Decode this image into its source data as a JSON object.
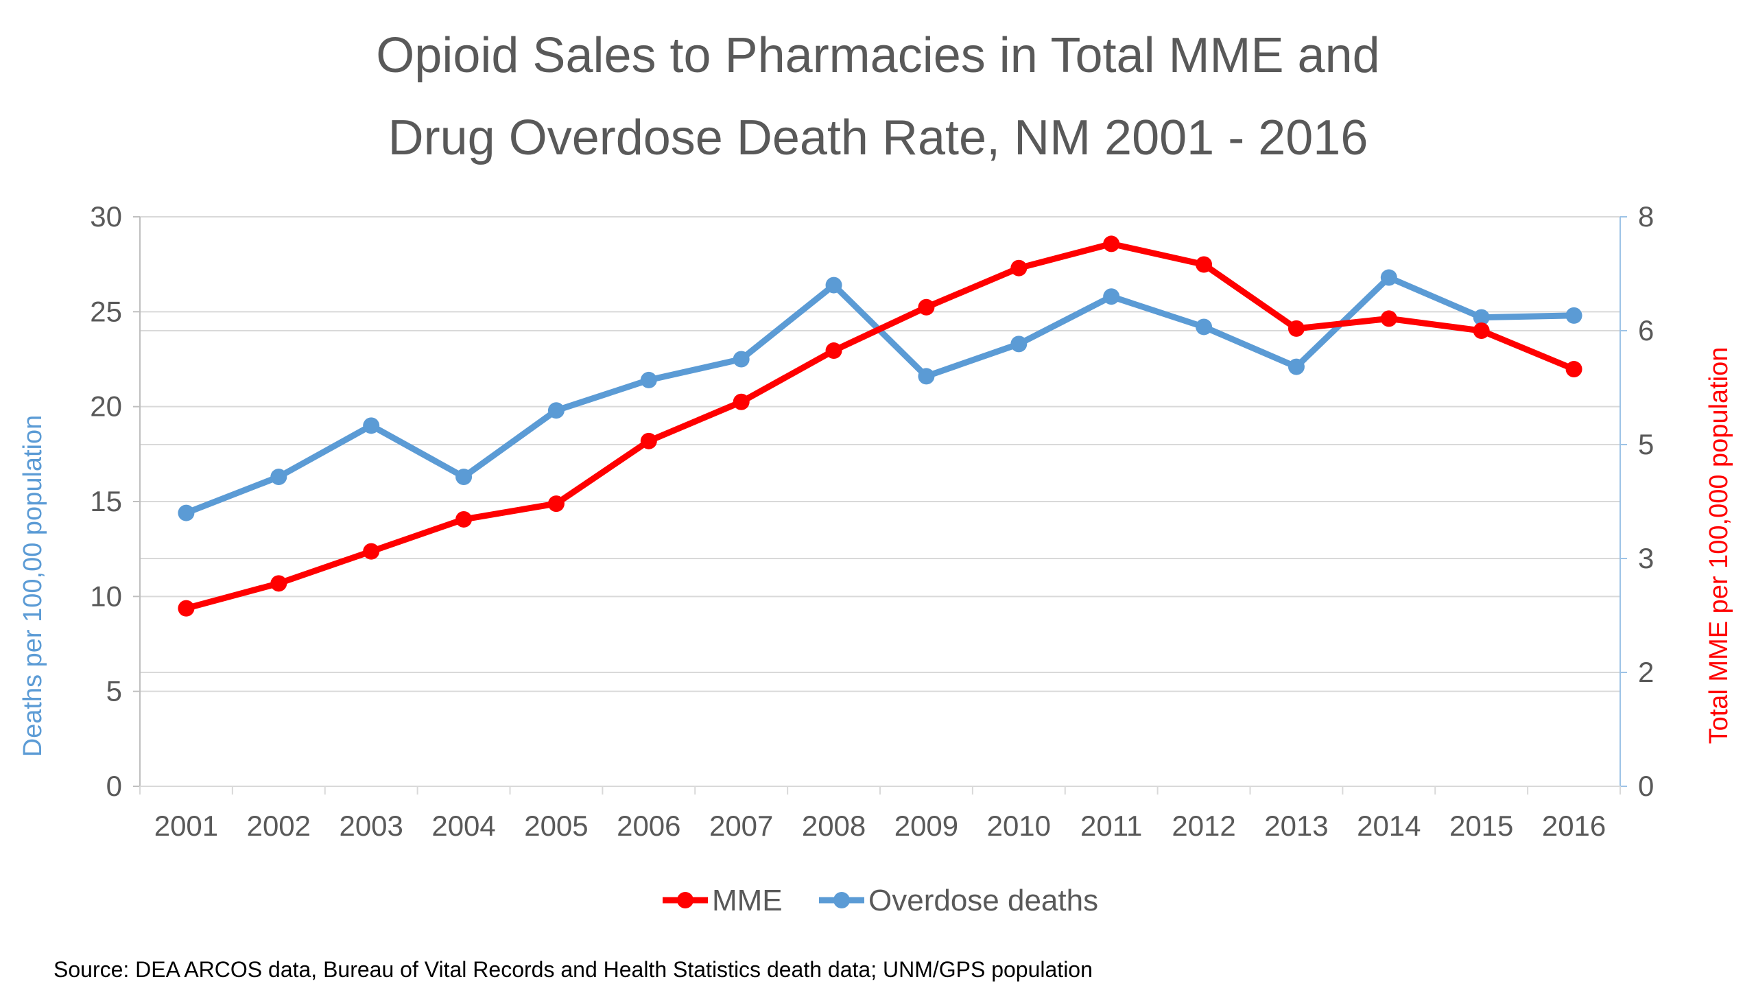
{
  "colors": {
    "mme": "#ff0000",
    "deaths": "#5b9bd5",
    "text": "#595959",
    "grid": "#d9d9d9",
    "axis_line_left": "#bfbfbf",
    "axis_line_right": "#9dc3e6"
  },
  "chart_data": {
    "type": "line",
    "title_line1": "Opioid Sales to Pharmacies in Total MME and",
    "title_line2": "Drug Overdose Death Rate, NM 2001 - 2016",
    "categories": [
      "2001",
      "2002",
      "2003",
      "2004",
      "2005",
      "2006",
      "2007",
      "2008",
      "2009",
      "2010",
      "2011",
      "2012",
      "2013",
      "2014",
      "2015",
      "2016"
    ],
    "y_left": {
      "label": "Deaths per 100,00 population",
      "ylim": [
        0,
        30
      ],
      "ticks": [
        "0",
        "5",
        "10",
        "15",
        "20",
        "25",
        "30"
      ]
    },
    "y_right": {
      "label": "Total MME per 100,000 population",
      "ylim": [
        0,
        8
      ],
      "ticks": [
        "0",
        "2",
        "3",
        "5",
        "6",
        "8"
      ]
    },
    "series": [
      {
        "name": "MME",
        "axis": "right",
        "values": [
          2.5,
          2.85,
          3.3,
          3.75,
          3.97,
          4.85,
          5.4,
          6.12,
          6.73,
          7.28,
          7.62,
          7.33,
          6.43,
          6.57,
          6.4,
          5.86
        ]
      },
      {
        "name": "Overdose deaths",
        "axis": "left",
        "values": [
          14.4,
          16.3,
          19.0,
          16.3,
          19.8,
          21.4,
          22.5,
          26.4,
          21.6,
          23.3,
          25.8,
          24.2,
          22.1,
          26.8,
          24.7,
          24.8
        ]
      }
    ],
    "legend": [
      "MME",
      "Overdose deaths"
    ],
    "legend_position": "bottom",
    "grid": true,
    "source": "Source: DEA ARCOS data, Bureau of Vital Records and Health Statistics death data; UNM/GPS population"
  }
}
